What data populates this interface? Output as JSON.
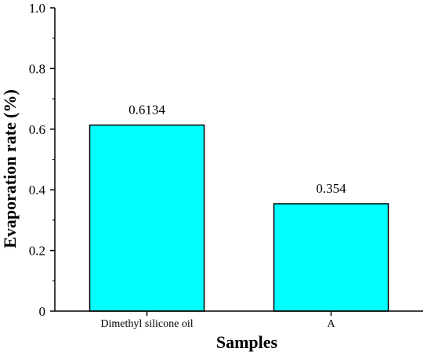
{
  "chart_data": {
    "type": "bar",
    "categories": [
      "Dimethyl silicone oil",
      "A"
    ],
    "values": [
      0.6134,
      0.354
    ],
    "data_labels": [
      "0.6134",
      "0.354"
    ],
    "title": "",
    "xlabel": "Samples",
    "ylabel": "Evaporation rate (%)",
    "ylim": [
      0,
      1.0
    ],
    "yticks": [
      0,
      0.2,
      0.4,
      0.6,
      0.8,
      1.0
    ],
    "ytick_labels": [
      "0",
      "0.2",
      "0.4",
      "0.6",
      "0.8",
      "1.0"
    ],
    "grid": false,
    "legend": "none",
    "bar_color": "#00ffff",
    "bar_edge_color": "#000000"
  }
}
